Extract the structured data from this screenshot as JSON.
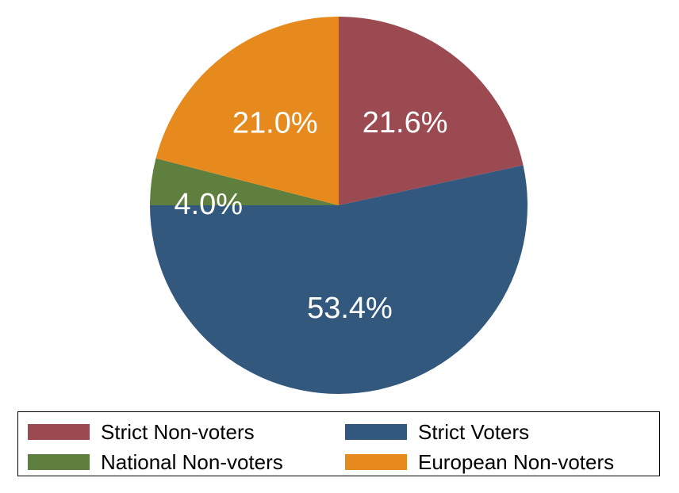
{
  "chart_data": {
    "type": "pie",
    "title": "",
    "slices": [
      {
        "name": "Strict Non-voters",
        "value": 21.6,
        "label": "21.6%",
        "color": "#9b4a51"
      },
      {
        "name": "Strict Voters",
        "value": 53.4,
        "label": "53.4%",
        "color": "#33587e"
      },
      {
        "name": "National Non-voters",
        "value": 4.0,
        "label": "4.0%",
        "color": "#5f7f3e"
      },
      {
        "name": "European Non-voters",
        "value": 21.0,
        "label": "21.0%",
        "color": "#e68a1d"
      }
    ],
    "start": "12 o'clock",
    "direction": "clockwise",
    "legend": {
      "position": "bottom",
      "columns": 2,
      "items": [
        {
          "label": "Strict Non-voters",
          "color": "#9b4a51"
        },
        {
          "label": "Strict Voters",
          "color": "#33587e"
        },
        {
          "label": "National Non-voters",
          "color": "#5f7f3e"
        },
        {
          "label": "European Non-voters",
          "color": "#e68a1d"
        }
      ]
    }
  }
}
